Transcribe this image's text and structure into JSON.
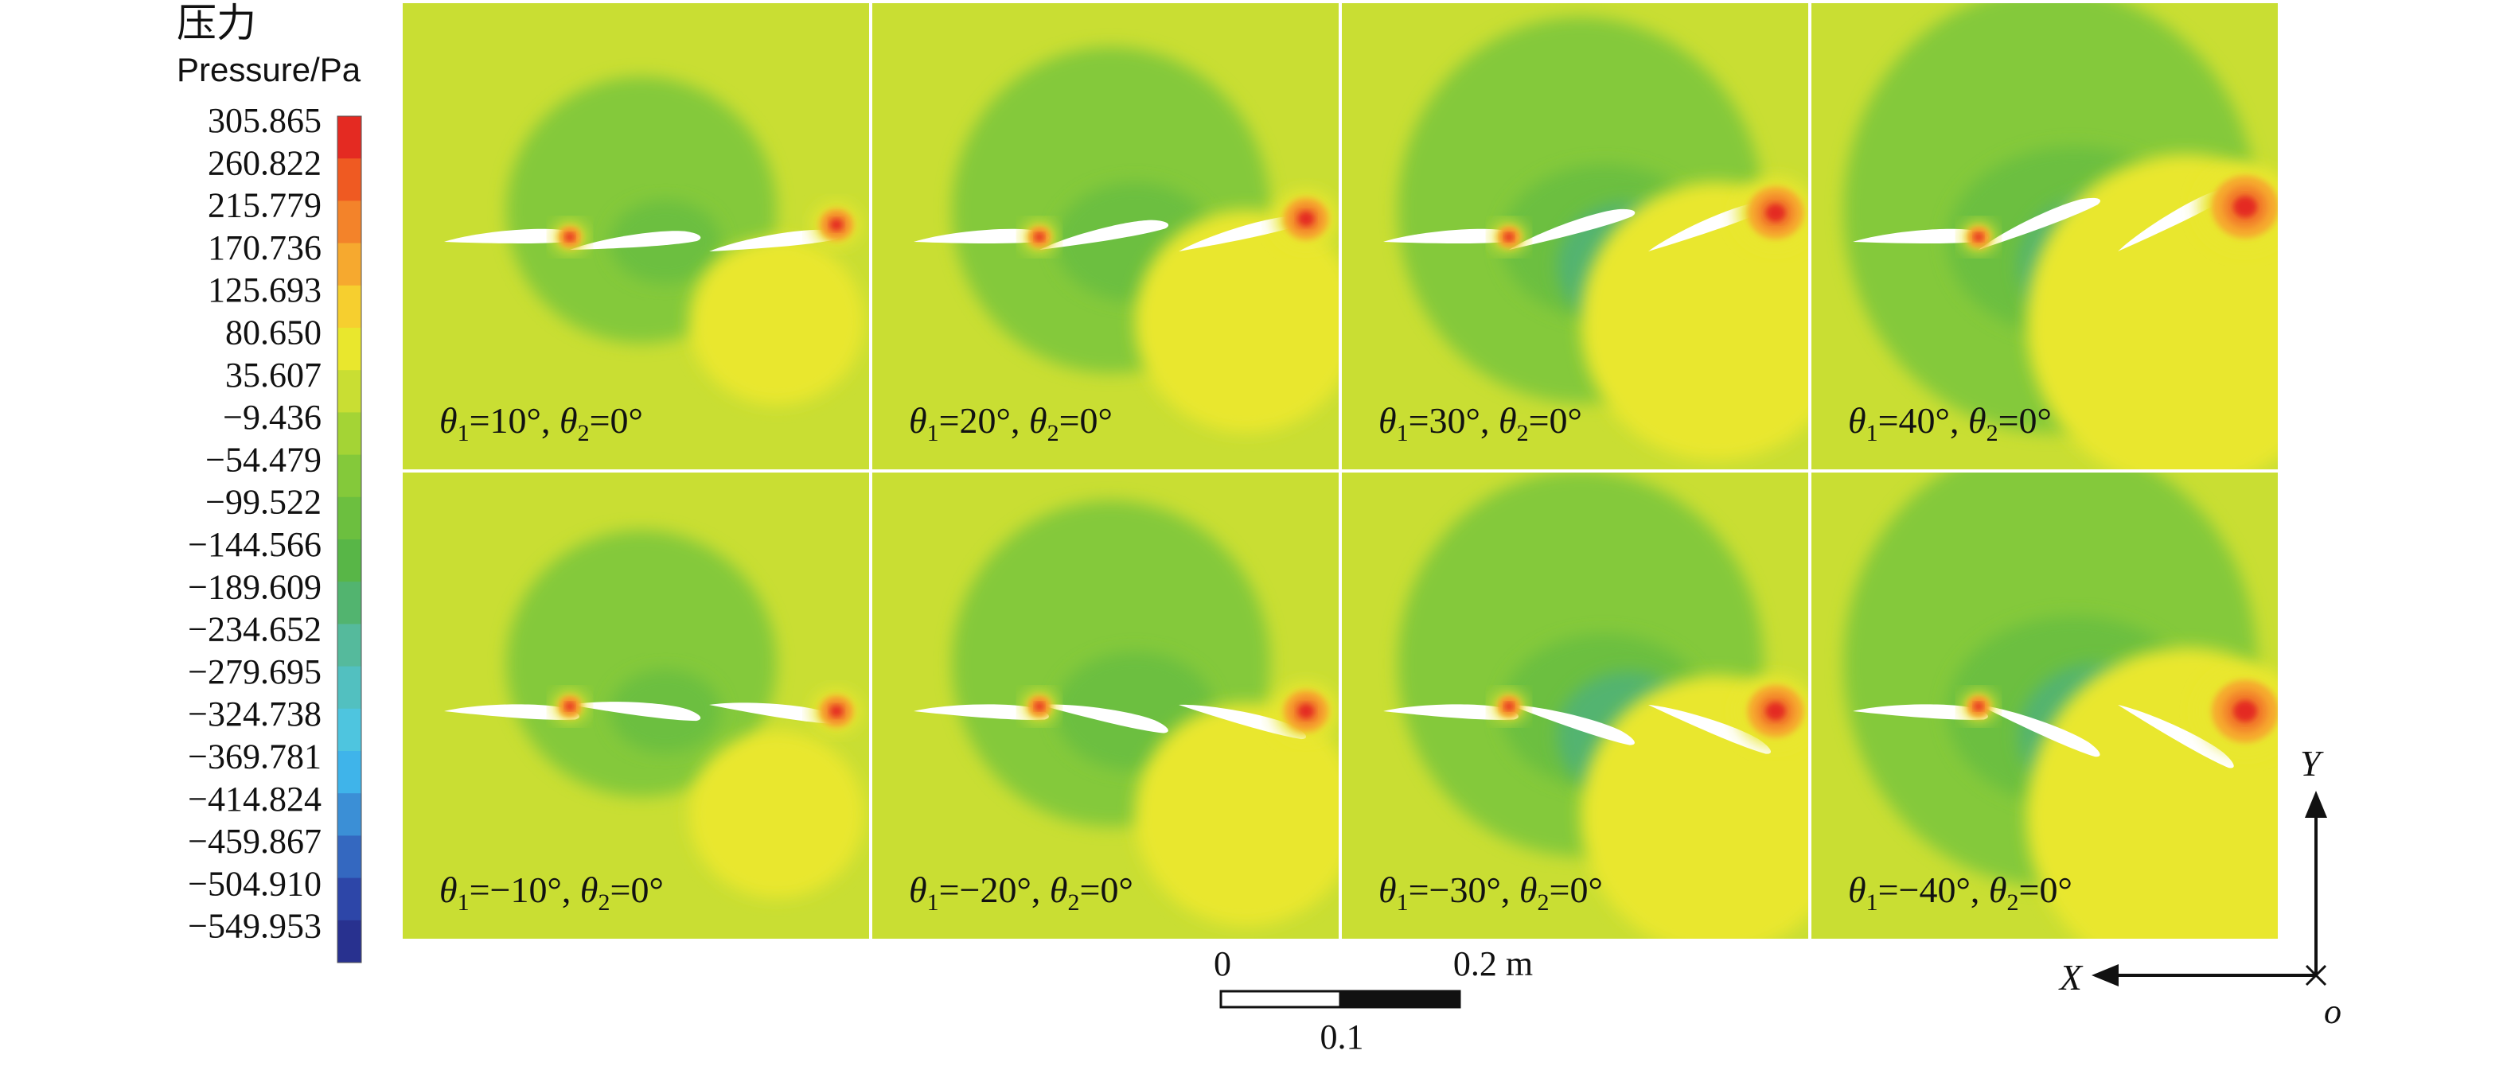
{
  "legend": {
    "title_cn": "压力",
    "title_en": "Pressure/Pa",
    "ticks": [
      "305.865",
      "260.822",
      "215.779",
      "170.736",
      "125.693",
      "80.650",
      "35.607",
      "−9.436",
      "−54.479",
      "−99.522",
      "−144.566",
      "−189.609",
      "−234.652",
      "−279.695",
      "−324.738",
      "−369.781",
      "−414.824",
      "−459.867",
      "−504.910",
      "−549.953"
    ],
    "colors": [
      "#e42a22",
      "#ef5a22",
      "#f3832a",
      "#f6a92f",
      "#f6cf2f",
      "#e9e72d",
      "#c9de33",
      "#a4d435",
      "#84c93a",
      "#6cbf3f",
      "#58b647",
      "#52b46f",
      "#55ba9c",
      "#52c0c0",
      "#4ec5df",
      "#3fb4ea",
      "#3b8fd6",
      "#3468c0",
      "#2d46a8",
      "#28318f"
    ]
  },
  "panels": [
    {
      "id": "p1",
      "theta1": "10°",
      "theta2": "0°"
    },
    {
      "id": "p2",
      "theta1": "20°",
      "theta2": "0°"
    },
    {
      "id": "p3",
      "theta1": "30°",
      "theta2": "0°"
    },
    {
      "id": "p4",
      "theta1": "40°",
      "theta2": "0°"
    },
    {
      "id": "p5",
      "theta1": "−10°",
      "theta2": "0°"
    },
    {
      "id": "p6",
      "theta1": "−20°",
      "theta2": "0°"
    },
    {
      "id": "p7",
      "theta1": "−30°",
      "theta2": "0°"
    },
    {
      "id": "p8",
      "theta1": "−40°",
      "theta2": "0°"
    }
  ],
  "scalebar": {
    "start": "0",
    "end": "0.2 m",
    "mid": "0.1"
  },
  "axes": {
    "y": "Y",
    "x": "X",
    "origin": "o"
  }
}
